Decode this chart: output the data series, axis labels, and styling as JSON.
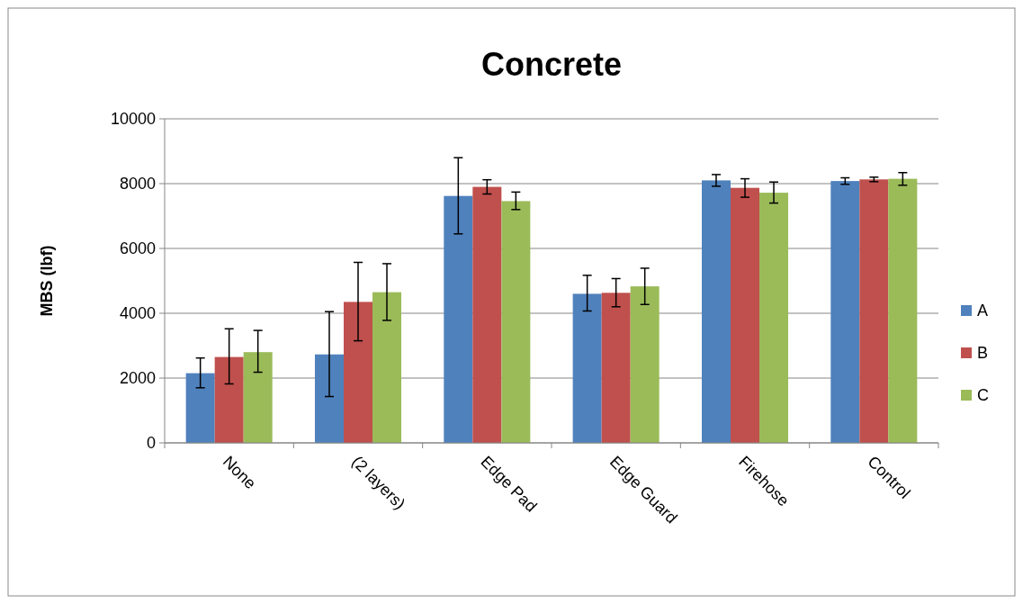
{
  "chart_data": {
    "type": "bar",
    "title": "Concrete",
    "ylabel": "MBS (lbf)",
    "categories": [
      "None",
      "(2 layers)",
      "Edge Pad",
      "Edge Guard",
      "Firehose",
      "Control"
    ],
    "series": [
      {
        "name": "A",
        "color": "#4f81bd",
        "values": [
          2150,
          2730,
          7620,
          4600,
          8100,
          8080
        ],
        "errors": [
          [
            1700,
            2620
          ],
          [
            1430,
            4050
          ],
          [
            6450,
            8800
          ],
          [
            4070,
            5170
          ],
          [
            7920,
            8280
          ],
          [
            7980,
            8180
          ]
        ]
      },
      {
        "name": "B",
        "color": "#c0504d",
        "values": [
          2650,
          4350,
          7900,
          4630,
          7870,
          8130
        ],
        "errors": [
          [
            1820,
            3520
          ],
          [
            3150,
            5570
          ],
          [
            7680,
            8120
          ],
          [
            4200,
            5070
          ],
          [
            7580,
            8150
          ],
          [
            8060,
            8200
          ]
        ]
      },
      {
        "name": "C",
        "color": "#9bbb59",
        "values": [
          2800,
          4650,
          7460,
          4830,
          7720,
          8150
        ],
        "errors": [
          [
            2180,
            3470
          ],
          [
            3780,
            5530
          ],
          [
            7200,
            7740
          ],
          [
            4270,
            5390
          ],
          [
            7400,
            8050
          ],
          [
            7950,
            8340
          ]
        ]
      }
    ],
    "ylim": [
      0,
      10000
    ],
    "yticks": [
      0,
      2000,
      4000,
      6000,
      8000,
      10000
    ],
    "grid": "y",
    "legend": "right"
  }
}
